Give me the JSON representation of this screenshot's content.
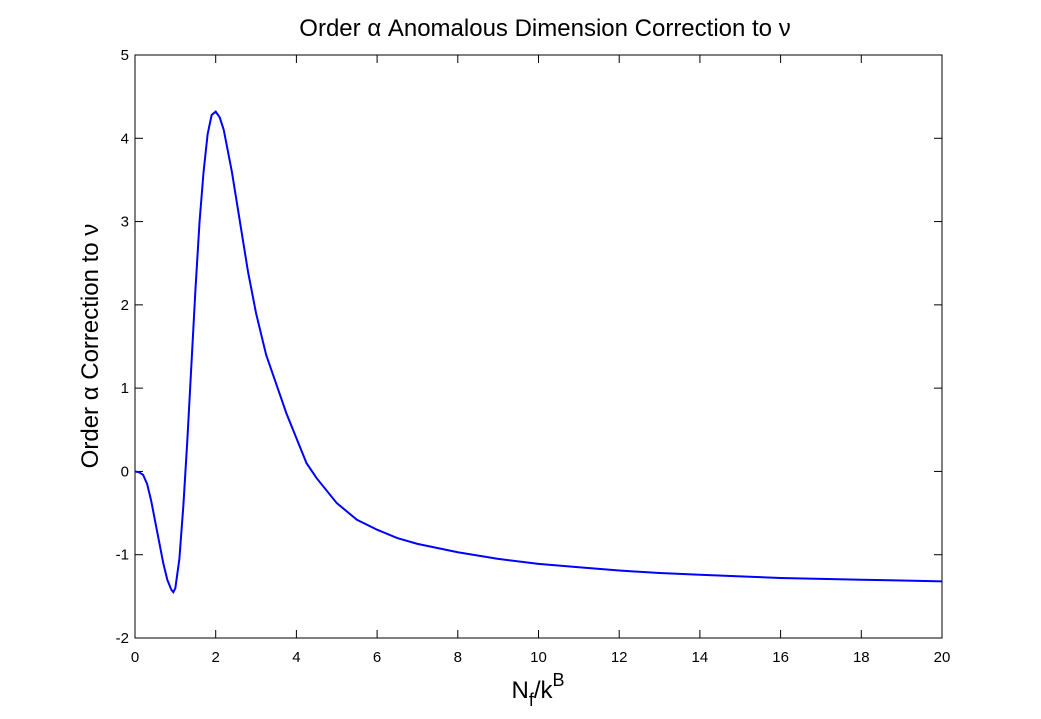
{
  "chart_data": {
    "type": "line",
    "title": "Order α Anomalous Dimension Correction to ν",
    "xlabel": [
      "N",
      "f",
      "/k",
      "B"
    ],
    "ylabel": "Order α Correction to ν",
    "x": [
      0,
      0.1,
      0.2,
      0.3,
      0.4,
      0.5,
      0.6,
      0.7,
      0.8,
      0.9,
      0.95,
      1.0,
      1.1,
      1.2,
      1.3,
      1.4,
      1.5,
      1.6,
      1.7,
      1.8,
      1.9,
      2.0,
      2.1,
      2.2,
      2.4,
      2.6,
      2.8,
      3.0,
      3.25,
      3.5,
      3.75,
      4.0,
      4.25,
      4.5,
      5,
      5.5,
      6,
      6.5,
      7,
      8,
      9,
      10,
      11,
      12,
      13,
      14,
      15,
      16,
      17,
      18,
      19,
      20
    ],
    "series": [
      {
        "color": "#0000ff",
        "values": [
          0,
          -0.01,
          -0.04,
          -0.15,
          -0.35,
          -0.6,
          -0.85,
          -1.1,
          -1.3,
          -1.42,
          -1.45,
          -1.4,
          -1.05,
          -0.4,
          0.4,
          1.3,
          2.2,
          3.0,
          3.6,
          4.05,
          4.28,
          4.32,
          4.25,
          4.1,
          3.6,
          3.0,
          2.4,
          1.9,
          1.4,
          1.05,
          0.7,
          0.4,
          0.1,
          -0.08,
          -0.38,
          -0.58,
          -0.7,
          -0.8,
          -0.87,
          -0.97,
          -1.05,
          -1.11,
          -1.15,
          -1.19,
          -1.22,
          -1.24,
          -1.26,
          -1.28,
          -1.29,
          -1.3,
          -1.31,
          -1.32
        ]
      }
    ],
    "xlim": [
      0,
      20
    ],
    "ylim": [
      -2,
      5
    ],
    "xticks": [
      0,
      2,
      4,
      6,
      8,
      10,
      12,
      14,
      16,
      18,
      20
    ],
    "yticks": [
      -2,
      -1,
      0,
      1,
      2,
      3,
      4,
      5
    ]
  }
}
